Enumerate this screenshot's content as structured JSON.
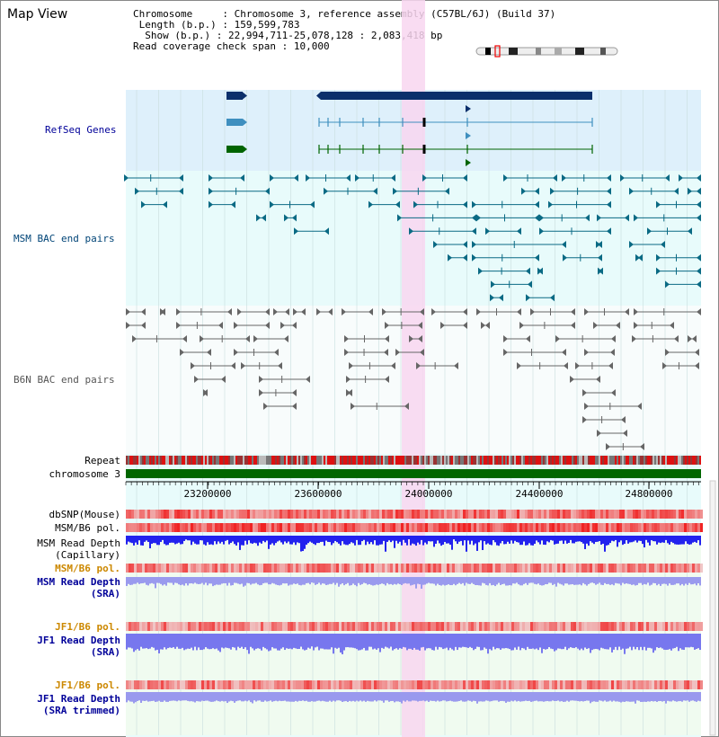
{
  "title": "Map View",
  "header": {
    "chromosome_key": "Chromosome",
    "chromosome_value": "Chromosome 3, reference assembly (C57BL/6J) (Build 37)",
    "length_key": "Length (b.p.)",
    "length_value": "159,599,783",
    "show_key": "Show (b.p.)",
    "show_value": "22,994,711-25,078,128 : 2,083,418 bp",
    "coverage_key": "Read coverage check span",
    "coverage_value": "10,000"
  },
  "tracks": {
    "refseq": "RefSeq Genes",
    "msm_bac": "MSM BAC end pairs",
    "b6n_bac": "B6N BAC end pairs",
    "repeat": "Repeat",
    "chromosome": "chromosome 3",
    "dbsnp": "dbSNP(Mouse)",
    "msm_b6_pol": "MSM/B6 pol.",
    "msm_read_depth_cap_1": "MSM Read Depth",
    "msm_read_depth_cap_2": "(Capillary)",
    "msm_b6_pol_sra": "MSM/B6 pol.",
    "msm_read_depth_sra_1": "MSM Read Depth",
    "msm_read_depth_sra_2": "(SRA)",
    "jf1_b6_pol": "JF1/B6 pol.",
    "jf1_read_depth_1": "JF1 Read Depth",
    "jf1_read_depth_2": "(SRA)",
    "jf1_b6_pol_2": "JF1/B6 pol.",
    "jf1_read_depth_trim_1": "JF1 Read Depth",
    "jf1_read_depth_trim_2": "(SRA trimmed)"
  },
  "axis_ticks": [
    "23200000",
    "23600000",
    "24000000",
    "24400000",
    "24800000"
  ],
  "colors": {
    "refseq_bg": "#def0fb",
    "bac_bg": "#e8fbfb",
    "highlight": "#f8d6f0",
    "gene_dark": "#0b2f6b",
    "gene_mid": "#3f8fbf",
    "gene_green": "#006400",
    "msm_line": "#0a6a84",
    "b6n_line": "#666666",
    "msm_label": "#004477",
    "b6n_label": "#555555",
    "blue_label": "#000099",
    "orange_label": "#cc8800",
    "chrom_bar": "#006600",
    "depth_blue": "#2020ee",
    "depth_light": "#8888ee",
    "snp_red": "#ee2222"
  }
}
